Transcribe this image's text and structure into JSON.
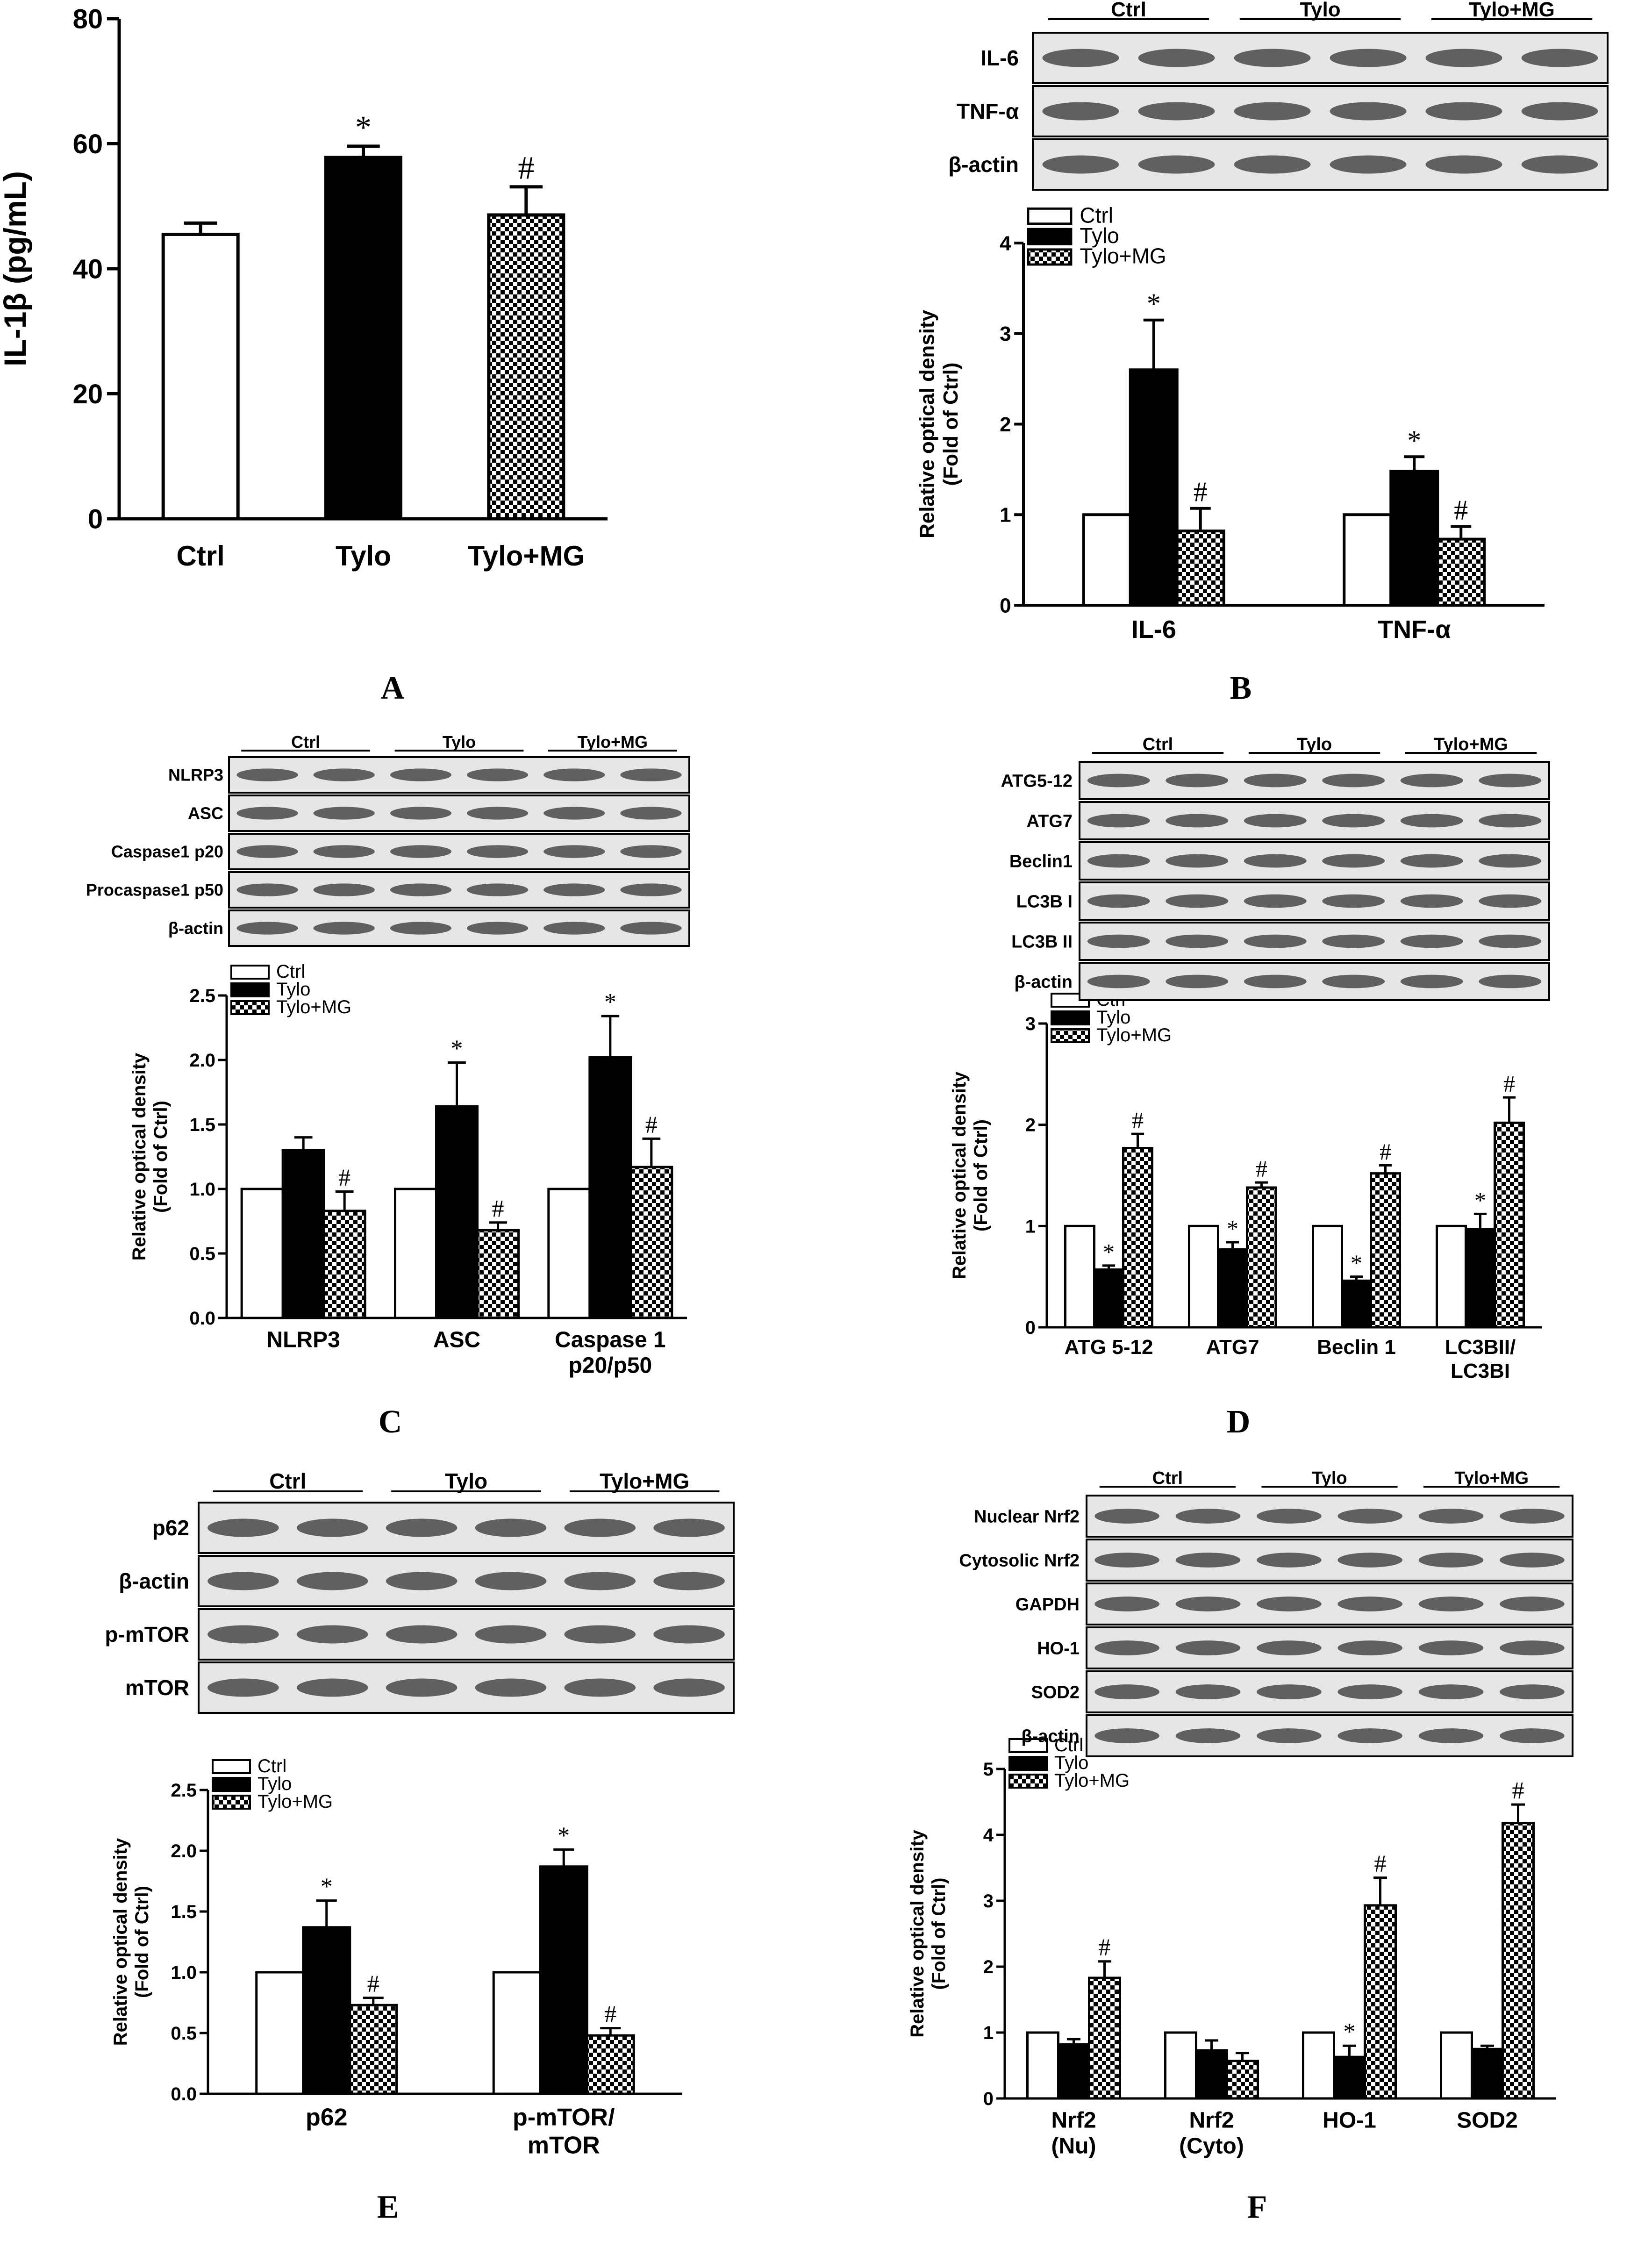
{
  "colors": {
    "ctrl": "#ffffff",
    "tylo": "#000000",
    "ink": "#000000"
  },
  "chart_data": [
    {
      "id": "A",
      "type": "bar",
      "letter": "A",
      "ylabel": "IL-1β (pg/mL)",
      "yticks": [
        "0",
        "20",
        "40",
        "60",
        "80"
      ],
      "ylim": [
        0,
        80
      ],
      "series_names": [
        "Ctrl",
        "Tylo",
        "Tylo+MG"
      ],
      "groups": [
        {
          "label": "",
          "bars": [
            {
              "series": "Ctrl",
              "value": 45.5,
              "err": 1.8,
              "mark": ""
            },
            {
              "series": "Tylo",
              "value": 57.8,
              "err": 1.8,
              "mark": "*"
            },
            {
              "series": "Tylo+MG",
              "value": 48.6,
              "err": 4.5,
              "mark": "#"
            }
          ]
        }
      ],
      "xcats": [
        "Ctrl",
        "Tylo",
        "Tylo+MG"
      ]
    },
    {
      "id": "B",
      "type": "bar",
      "letter": "B",
      "ylabel": [
        "Relative optical density",
        "(Fold of Ctrl)"
      ],
      "yticks": [
        "0",
        "1",
        "2",
        "3",
        "4"
      ],
      "ylim": [
        0,
        4
      ],
      "legend": [
        "Ctrl",
        "Tylo",
        "Tylo+MG"
      ],
      "groups": [
        {
          "label": "IL-6",
          "bars": [
            {
              "series": "Ctrl",
              "value": 1.0,
              "err": 0,
              "mark": ""
            },
            {
              "series": "Tylo",
              "value": 2.6,
              "err": 0.55,
              "mark": "*"
            },
            {
              "series": "Tylo+MG",
              "value": 0.82,
              "err": 0.25,
              "mark": "#"
            }
          ]
        },
        {
          "label": "TNF-α",
          "bars": [
            {
              "series": "Ctrl",
              "value": 1.0,
              "err": 0,
              "mark": ""
            },
            {
              "series": "Tylo",
              "value": 1.48,
              "err": 0.16,
              "mark": "*"
            },
            {
              "series": "Tylo+MG",
              "value": 0.73,
              "err": 0.14,
              "mark": "#"
            }
          ]
        }
      ],
      "blot": {
        "groups": [
          "Ctrl",
          "Tylo",
          "Tylo+MG"
        ],
        "rows": [
          "IL-6",
          "TNF-α",
          "β-actin"
        ]
      }
    },
    {
      "id": "C",
      "type": "bar",
      "letter": "C",
      "ylabel": [
        "Relative optical density",
        "(Fold of Ctrl)"
      ],
      "yticks": [
        "0.0",
        "0.5",
        "1.0",
        "1.5",
        "2.0",
        "2.5"
      ],
      "ylim": [
        0,
        2.5
      ],
      "legend": [
        "Ctrl",
        "Tylo",
        "Tylo+MG"
      ],
      "groups": [
        {
          "label": "NLRP3",
          "bars": [
            {
              "series": "Ctrl",
              "value": 1.0,
              "err": 0,
              "mark": ""
            },
            {
              "series": "Tylo",
              "value": 1.3,
              "err": 0.1,
              "mark": ""
            },
            {
              "series": "Tylo+MG",
              "value": 0.83,
              "err": 0.15,
              "mark": "#"
            }
          ]
        },
        {
          "label": "ASC",
          "bars": [
            {
              "series": "Ctrl",
              "value": 1.0,
              "err": 0,
              "mark": ""
            },
            {
              "series": "Tylo",
              "value": 1.64,
              "err": 0.34,
              "mark": "*"
            },
            {
              "series": "Tylo+MG",
              "value": 0.68,
              "err": 0.06,
              "mark": "#"
            }
          ]
        },
        {
          "label": "Caspase 1\np20/p50",
          "bars": [
            {
              "series": "Ctrl",
              "value": 1.0,
              "err": 0,
              "mark": ""
            },
            {
              "series": "Tylo",
              "value": 2.02,
              "err": 0.32,
              "mark": "*"
            },
            {
              "series": "Tylo+MG",
              "value": 1.17,
              "err": 0.22,
              "mark": "#"
            }
          ]
        }
      ],
      "blot": {
        "groups": [
          "Ctrl",
          "Tylo",
          "Tylo+MG"
        ],
        "rows": [
          "NLRP3",
          "ASC",
          "Caspase1 p20",
          "Procaspase1 p50",
          "β-actin"
        ]
      }
    },
    {
      "id": "D",
      "type": "bar",
      "letter": "D",
      "ylabel": [
        "Relative optical density",
        "(Fold of Ctrl)"
      ],
      "yticks": [
        "0",
        "1",
        "2",
        "3"
      ],
      "ylim": [
        0,
        3
      ],
      "legend": [
        "Ctrl",
        "Tylo",
        "Tylo+MG"
      ],
      "groups": [
        {
          "label": "ATG 5-12",
          "bars": [
            {
              "series": "Ctrl",
              "value": 1.0,
              "err": 0,
              "mark": ""
            },
            {
              "series": "Tylo",
              "value": 0.57,
              "err": 0.04,
              "mark": "*"
            },
            {
              "series": "Tylo+MG",
              "value": 1.77,
              "err": 0.14,
              "mark": "#"
            }
          ]
        },
        {
          "label": "ATG7",
          "bars": [
            {
              "series": "Ctrl",
              "value": 1.0,
              "err": 0,
              "mark": ""
            },
            {
              "series": "Tylo",
              "value": 0.77,
              "err": 0.07,
              "mark": "*"
            },
            {
              "series": "Tylo+MG",
              "value": 1.38,
              "err": 0.05,
              "mark": "#"
            }
          ]
        },
        {
          "label": "Beclin 1",
          "bars": [
            {
              "series": "Ctrl",
              "value": 1.0,
              "err": 0,
              "mark": ""
            },
            {
              "series": "Tylo",
              "value": 0.46,
              "err": 0.04,
              "mark": "*"
            },
            {
              "series": "Tylo+MG",
              "value": 1.52,
              "err": 0.08,
              "mark": "#"
            }
          ]
        },
        {
          "label": "LC3BII/\nLC3BI",
          "bars": [
            {
              "series": "Ctrl",
              "value": 1.0,
              "err": 0,
              "mark": ""
            },
            {
              "series": "Tylo",
              "value": 0.97,
              "err": 0.15,
              "mark": "*"
            },
            {
              "series": "Tylo+MG",
              "value": 2.02,
              "err": 0.25,
              "mark": "#"
            }
          ]
        }
      ],
      "blot": {
        "groups": [
          "Ctrl",
          "Tylo",
          "Tylo+MG"
        ],
        "rows": [
          "ATG5-12",
          "ATG7",
          "Beclin1",
          "LC3B I",
          "LC3B II",
          "β-actin"
        ]
      }
    },
    {
      "id": "E",
      "type": "bar",
      "letter": "E",
      "ylabel": [
        "Relative optical density",
        "(Fold of Ctrl)"
      ],
      "yticks": [
        "0.0",
        "0.5",
        "1.0",
        "1.5",
        "2.0",
        "2.5"
      ],
      "ylim": [
        0,
        2.5
      ],
      "legend": [
        "Ctrl",
        "Tylo",
        "Tylo+MG"
      ],
      "groups": [
        {
          "label": "p62",
          "bars": [
            {
              "series": "Ctrl",
              "value": 1.0,
              "err": 0,
              "mark": ""
            },
            {
              "series": "Tylo",
              "value": 1.37,
              "err": 0.22,
              "mark": "*"
            },
            {
              "series": "Tylo+MG",
              "value": 0.73,
              "err": 0.06,
              "mark": "#"
            }
          ]
        },
        {
          "label": "p-mTOR/\nmTOR",
          "bars": [
            {
              "series": "Ctrl",
              "value": 1.0,
              "err": 0,
              "mark": ""
            },
            {
              "series": "Tylo",
              "value": 1.87,
              "err": 0.14,
              "mark": "*"
            },
            {
              "series": "Tylo+MG",
              "value": 0.48,
              "err": 0.06,
              "mark": "#"
            }
          ]
        }
      ],
      "blot": {
        "groups": [
          "Ctrl",
          "Tylo",
          "Tylo+MG"
        ],
        "rows": [
          "p62",
          "β-actin",
          "p-mTOR",
          "mTOR"
        ]
      }
    },
    {
      "id": "F",
      "type": "bar",
      "letter": "F",
      "ylabel": [
        "Relative optical density",
        "(Fold of Ctrl)"
      ],
      "yticks": [
        "0",
        "1",
        "2",
        "3",
        "4",
        "5"
      ],
      "ylim": [
        0,
        5
      ],
      "legend": [
        "Ctrl",
        "Tylo",
        "Tylo+MG"
      ],
      "groups": [
        {
          "label": "Nrf2\n(Nu)",
          "bars": [
            {
              "series": "Ctrl",
              "value": 1.0,
              "err": 0,
              "mark": ""
            },
            {
              "series": "Tylo",
              "value": 0.82,
              "err": 0.08,
              "mark": ""
            },
            {
              "series": "Tylo+MG",
              "value": 1.83,
              "err": 0.25,
              "mark": "#"
            }
          ]
        },
        {
          "label": "Nrf2\n(Cyto)",
          "bars": [
            {
              "series": "Ctrl",
              "value": 1.0,
              "err": 0,
              "mark": ""
            },
            {
              "series": "Tylo",
              "value": 0.73,
              "err": 0.15,
              "mark": ""
            },
            {
              "series": "Tylo+MG",
              "value": 0.57,
              "err": 0.12,
              "mark": ""
            }
          ]
        },
        {
          "label": "HO-1",
          "bars": [
            {
              "series": "Ctrl",
              "value": 1.0,
              "err": 0,
              "mark": ""
            },
            {
              "series": "Tylo",
              "value": 0.63,
              "err": 0.17,
              "mark": "*"
            },
            {
              "series": "Tylo+MG",
              "value": 2.93,
              "err": 0.42,
              "mark": "#"
            }
          ]
        },
        {
          "label": "SOD2",
          "bars": [
            {
              "series": "Ctrl",
              "value": 1.0,
              "err": 0,
              "mark": ""
            },
            {
              "series": "Tylo",
              "value": 0.75,
              "err": 0.05,
              "mark": ""
            },
            {
              "series": "Tylo+MG",
              "value": 4.18,
              "err": 0.28,
              "mark": "#"
            }
          ]
        }
      ],
      "blot": {
        "groups": [
          "Ctrl",
          "Tylo",
          "Tylo+MG"
        ],
        "rows": [
          "Nuclear Nrf2",
          "Cytosolic Nrf2",
          "GAPDH",
          "HO-1",
          "SOD2",
          "β-actin"
        ]
      }
    }
  ]
}
